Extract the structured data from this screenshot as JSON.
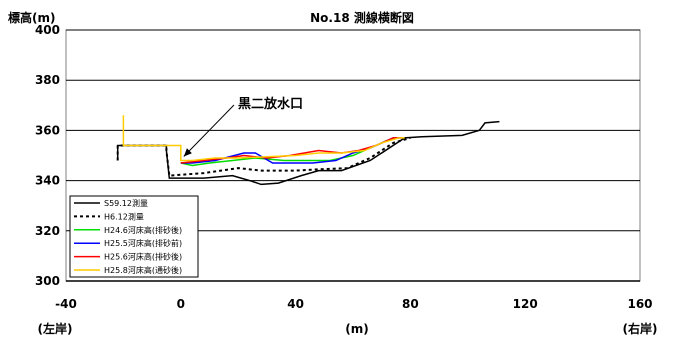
{
  "chart_data": {
    "type": "line",
    "title": "No.18 測線横断図",
    "ylabel": "標高(m)",
    "xlabel": "(m)",
    "x_left_label": "(左岸)",
    "x_right_label": "(右岸)",
    "xlim": [
      -40,
      160
    ],
    "ylim": [
      300,
      400
    ],
    "xticks": [
      "-40",
      "0",
      "40",
      "80",
      "120",
      "160"
    ],
    "yticks": [
      "300",
      "320",
      "340",
      "360",
      "380",
      "400"
    ],
    "grid": "horizontal",
    "legend_position": "bottom-left",
    "annotation": {
      "text": "黒二放水口",
      "points_to": [
        0,
        348
      ]
    },
    "series": [
      {
        "name": "S59.12測量",
        "color": "#000000",
        "style": "solid",
        "points": [
          [
            -22,
            348
          ],
          [
            -22,
            354
          ],
          [
            -5,
            354
          ],
          [
            -5,
            352
          ],
          [
            -4,
            341
          ],
          [
            0,
            341
          ],
          [
            8,
            341
          ],
          [
            18,
            342
          ],
          [
            24,
            340
          ],
          [
            28,
            338.5
          ],
          [
            34,
            339
          ],
          [
            42,
            342
          ],
          [
            48,
            344
          ],
          [
            56,
            344
          ],
          [
            66,
            348
          ],
          [
            78,
            357
          ],
          [
            84,
            357.5
          ],
          [
            98,
            358
          ],
          [
            104,
            360
          ],
          [
            106,
            363
          ],
          [
            111,
            363.5
          ]
        ]
      },
      {
        "name": "H6.12測量",
        "color": "#000000",
        "style": "dashed",
        "points": [
          [
            -22,
            348
          ],
          [
            -22,
            354
          ],
          [
            -5,
            354
          ],
          [
            -5,
            352
          ],
          [
            -4,
            342
          ],
          [
            8,
            343
          ],
          [
            14,
            344
          ],
          [
            20,
            345
          ],
          [
            28,
            344
          ],
          [
            40,
            344
          ],
          [
            48,
            344.5
          ],
          [
            58,
            345
          ],
          [
            66,
            349
          ],
          [
            74,
            355
          ],
          [
            80,
            357
          ]
        ]
      },
      {
        "name": "H24.6河床高(排砂後)",
        "color": "#00dd00",
        "style": "solid",
        "points": [
          [
            0,
            347
          ],
          [
            4,
            346
          ],
          [
            10,
            347
          ],
          [
            18,
            348
          ],
          [
            26,
            349
          ],
          [
            36,
            348
          ],
          [
            44,
            348
          ],
          [
            52,
            348
          ],
          [
            60,
            350
          ],
          [
            66,
            353
          ],
          [
            72,
            356
          ],
          [
            76,
            357
          ]
        ]
      },
      {
        "name": "H25.5河床高(排砂前)",
        "color": "#0000ff",
        "style": "solid",
        "points": [
          [
            0,
            347
          ],
          [
            4,
            347
          ],
          [
            12,
            348
          ],
          [
            22,
            351
          ],
          [
            26,
            351
          ],
          [
            32,
            347
          ],
          [
            38,
            347
          ],
          [
            46,
            347
          ],
          [
            54,
            348
          ],
          [
            60,
            351
          ],
          [
            66,
            353
          ],
          [
            74,
            357
          ],
          [
            77,
            357
          ]
        ]
      },
      {
        "name": "H25.6河床高(排砂後)",
        "color": "#ff0000",
        "style": "solid",
        "points": [
          [
            0,
            347
          ],
          [
            8,
            348
          ],
          [
            16,
            349
          ],
          [
            22,
            350
          ],
          [
            30,
            349
          ],
          [
            38,
            350
          ],
          [
            48,
            352
          ],
          [
            56,
            351
          ],
          [
            62,
            352
          ],
          [
            68,
            354
          ],
          [
            74,
            357
          ],
          [
            77,
            357
          ]
        ]
      },
      {
        "name": "H25.8河床高(通砂後)",
        "color": "#ffcc00",
        "style": "solid",
        "points": [
          [
            -20,
            366
          ],
          [
            -20,
            354
          ],
          [
            0,
            354
          ],
          [
            0,
            348
          ],
          [
            4,
            348
          ],
          [
            12,
            349
          ],
          [
            20,
            349
          ],
          [
            30,
            349.5
          ],
          [
            40,
            350
          ],
          [
            48,
            351
          ],
          [
            56,
            351
          ],
          [
            64,
            352
          ],
          [
            70,
            355
          ],
          [
            76,
            357
          ],
          [
            78,
            357
          ]
        ]
      }
    ]
  }
}
